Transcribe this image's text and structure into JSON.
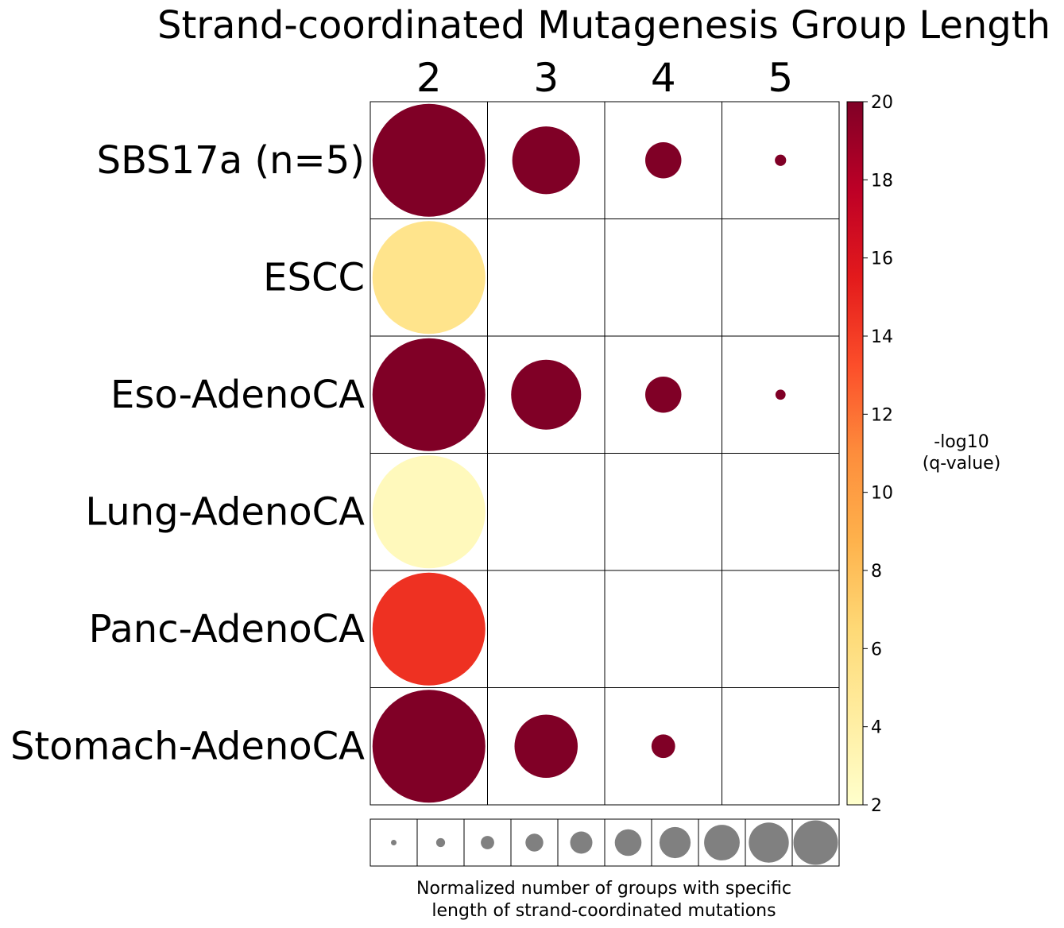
{
  "chart_data": {
    "type": "bubble-grid",
    "title": "Strand-coordinated Mutagenesis Group Length",
    "columns": [
      "2",
      "3",
      "4",
      "5"
    ],
    "rows": [
      "SBS17a (n=5)",
      "ESCC",
      "Eso-AdenoCA",
      "Lung-AdenoCA",
      "Panc-AdenoCA",
      "Stomach-AdenoCA"
    ],
    "size_note": "relative size 0-1 (1 = largest legend circle)",
    "cells": [
      {
        "row": "SBS17a (n=5)",
        "col": "2",
        "size": 1.0,
        "q": 20
      },
      {
        "row": "SBS17a (n=5)",
        "col": "3",
        "size": 0.6,
        "q": 20
      },
      {
        "row": "SBS17a (n=5)",
        "col": "4",
        "size": 0.32,
        "q": 20
      },
      {
        "row": "SBS17a (n=5)",
        "col": "5",
        "size": 0.1,
        "q": 20
      },
      {
        "row": "ESCC",
        "col": "2",
        "size": 1.0,
        "q": 5.3
      },
      {
        "row": "Eso-AdenoCA",
        "col": "2",
        "size": 1.0,
        "q": 20
      },
      {
        "row": "Eso-AdenoCA",
        "col": "3",
        "size": 0.62,
        "q": 20
      },
      {
        "row": "Eso-AdenoCA",
        "col": "4",
        "size": 0.32,
        "q": 20
      },
      {
        "row": "Eso-AdenoCA",
        "col": "5",
        "size": 0.09,
        "q": 20
      },
      {
        "row": "Lung-AdenoCA",
        "col": "2",
        "size": 1.0,
        "q": 2.8
      },
      {
        "row": "Panc-AdenoCA",
        "col": "2",
        "size": 1.0,
        "q": 14.5
      },
      {
        "row": "Stomach-AdenoCA",
        "col": "2",
        "size": 1.0,
        "q": 20
      },
      {
        "row": "Stomach-AdenoCA",
        "col": "3",
        "size": 0.56,
        "q": 20
      },
      {
        "row": "Stomach-AdenoCA",
        "col": "4",
        "size": 0.21,
        "q": 20
      }
    ],
    "colorbar": {
      "label": "-log10\n(q-value)",
      "label_lines": [
        "-log10",
        "(q-value)"
      ],
      "min": 2,
      "max": 20,
      "ticks": [
        2,
        4,
        6,
        8,
        10,
        12,
        14,
        16,
        18,
        20
      ],
      "colormap": "YlOrRd"
    },
    "size_legend": {
      "sizes": [
        0.1,
        0.2,
        0.3,
        0.4,
        0.5,
        0.6,
        0.7,
        0.8,
        0.9,
        1.0
      ],
      "color": "#808080",
      "label": "Normalized number of groups with specific\n length of strand-coordinated mutations",
      "label_lines": [
        "Normalized number of groups with specific",
        "length of strand-coordinated mutations"
      ]
    }
  }
}
